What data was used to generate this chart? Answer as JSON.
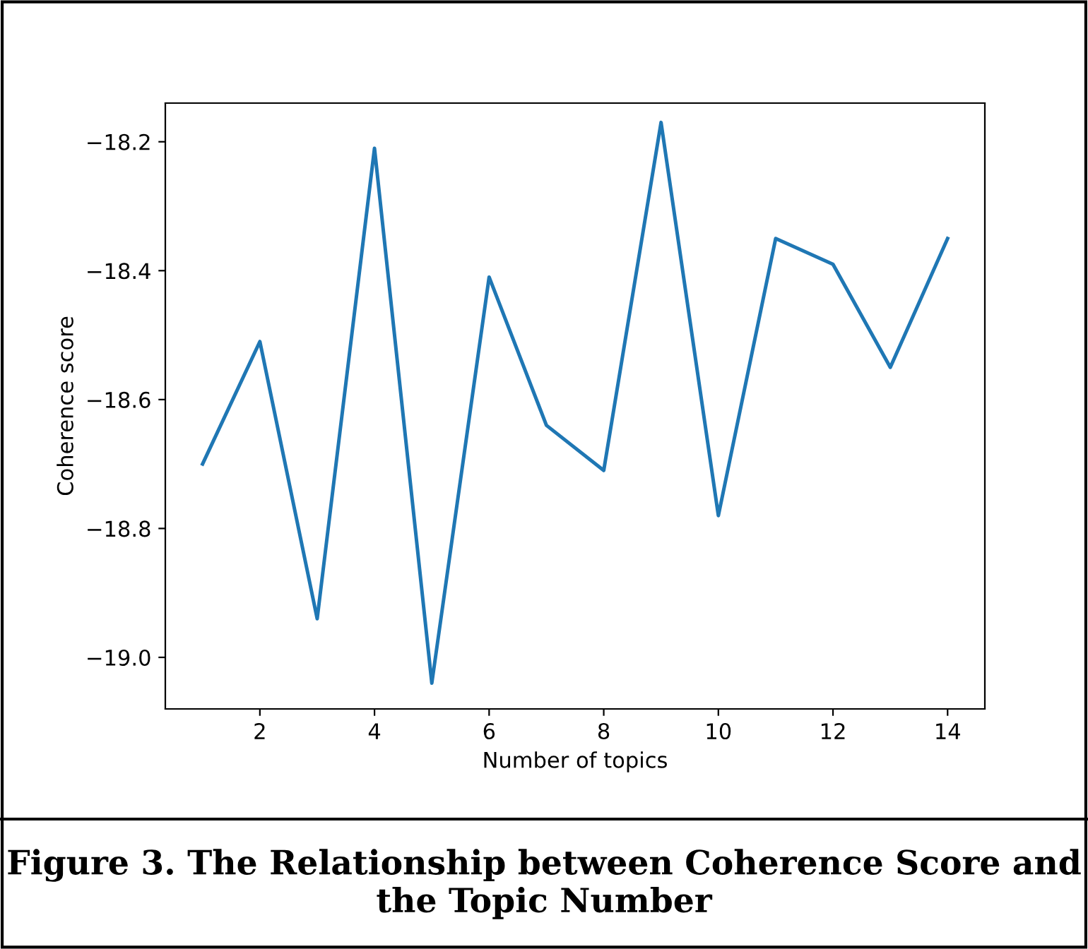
{
  "chart_data": {
    "type": "line",
    "xlabel": "Number of topics",
    "ylabel": "Coherence score",
    "x": [
      1,
      2,
      3,
      4,
      5,
      6,
      7,
      8,
      9,
      10,
      11,
      12,
      13,
      14
    ],
    "series": [
      {
        "color": "#1f77b4",
        "values": [
          -18.7,
          -18.51,
          -18.94,
          -18.21,
          -19.04,
          -18.41,
          -18.64,
          -18.71,
          -18.17,
          -18.78,
          -18.35,
          -18.39,
          -18.55,
          -18.35
        ]
      }
    ],
    "xlim": [
      0.35,
      14.65
    ],
    "ylim": [
      -19.08,
      -18.14
    ],
    "xticks": [
      2,
      4,
      6,
      8,
      10,
      12,
      14
    ],
    "yticks": [
      {
        "value": -19.0,
        "label": "−19.0"
      },
      {
        "value": -18.8,
        "label": "−18.8"
      },
      {
        "value": -18.6,
        "label": "−18.6"
      },
      {
        "value": -18.4,
        "label": "−18.4"
      },
      {
        "value": -18.2,
        "label": "−18.2"
      }
    ],
    "grid": false,
    "legend": false,
    "annotations": [
      "Figure 3. The Relationship between Coherence Score and the Topic Number"
    ]
  }
}
